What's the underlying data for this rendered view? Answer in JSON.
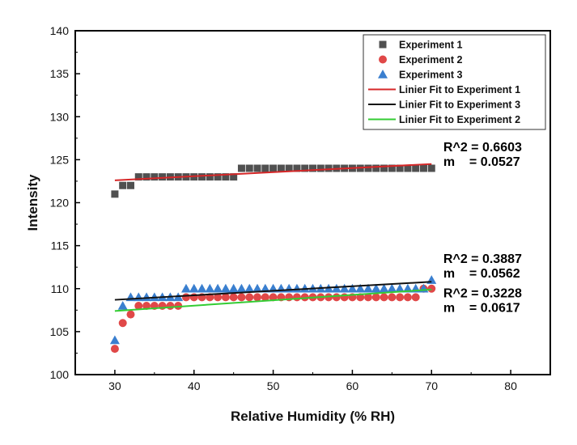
{
  "chart_data": {
    "type": "scatter",
    "xlabel": "Relative Humidity (% RH)",
    "ylabel": "Intensity",
    "xlim": [
      25,
      85
    ],
    "ylim": [
      100,
      140
    ],
    "x_ticks": [
      30,
      40,
      50,
      60,
      70,
      80
    ],
    "y_ticks": [
      100,
      105,
      110,
      115,
      120,
      125,
      130,
      135,
      140
    ],
    "grid": false,
    "legend_position": "top-right",
    "series": [
      {
        "name": "Experiment 1",
        "marker": "square",
        "color": "#505050",
        "x": [
          30,
          31,
          32,
          33,
          34,
          35,
          36,
          37,
          38,
          39,
          40,
          41,
          42,
          43,
          44,
          45,
          46,
          47,
          48,
          49,
          50,
          51,
          52,
          53,
          54,
          55,
          56,
          57,
          58,
          59,
          60,
          61,
          62,
          63,
          64,
          65,
          66,
          67,
          68,
          69,
          70
        ],
        "y": [
          121,
          122,
          122,
          123,
          123,
          123,
          123,
          123,
          123,
          123,
          123,
          123,
          123,
          123,
          123,
          123,
          124,
          124,
          124,
          124,
          124,
          124,
          124,
          124,
          124,
          124,
          124,
          124,
          124,
          124,
          124,
          124,
          124,
          124,
          124,
          124,
          124,
          124,
          124,
          124,
          124
        ]
      },
      {
        "name": "Experiment 2",
        "marker": "circle",
        "color": "#e04848",
        "x": [
          30,
          31,
          32,
          33,
          34,
          35,
          36,
          37,
          38,
          39,
          40,
          41,
          42,
          43,
          44,
          45,
          46,
          47,
          48,
          49,
          50,
          51,
          52,
          53,
          54,
          55,
          56,
          57,
          58,
          59,
          60,
          61,
          62,
          63,
          64,
          65,
          66,
          67,
          68,
          69,
          70
        ],
        "y": [
          103,
          106,
          107,
          108,
          108,
          108,
          108,
          108,
          108,
          109,
          109,
          109,
          109,
          109,
          109,
          109,
          109,
          109,
          109,
          109,
          109,
          109,
          109,
          109,
          109,
          109,
          109,
          109,
          109,
          109,
          109,
          109,
          109,
          109,
          109,
          109,
          109,
          109,
          109,
          110,
          110
        ]
      },
      {
        "name": "Experiment 3",
        "marker": "triangle",
        "color": "#3a7fcf",
        "x": [
          30,
          31,
          32,
          33,
          34,
          35,
          36,
          37,
          38,
          39,
          40,
          41,
          42,
          43,
          44,
          45,
          46,
          47,
          48,
          49,
          50,
          51,
          52,
          53,
          54,
          55,
          56,
          57,
          58,
          59,
          60,
          61,
          62,
          63,
          64,
          65,
          66,
          67,
          68,
          69,
          70
        ],
        "y": [
          104,
          108,
          109,
          109,
          109,
          109,
          109,
          109,
          109,
          110,
          110,
          110,
          110,
          110,
          110,
          110,
          110,
          110,
          110,
          110,
          110,
          110,
          110,
          110,
          110,
          110,
          110,
          110,
          110,
          110,
          110,
          110,
          110,
          110,
          110,
          110,
          110,
          110,
          110,
          110,
          111
        ]
      }
    ],
    "fits": [
      {
        "name": "Linier Fit to Experiment 1",
        "color": "#d62728",
        "x": [
          30,
          70
        ],
        "y": [
          122.6,
          124.5
        ]
      },
      {
        "name": "Linier Fit to Experiment 3",
        "color": "#111111",
        "x": [
          30,
          70
        ],
        "y": [
          108.7,
          110.8
        ]
      },
      {
        "name": "Linier Fit to Experiment 2",
        "color": "#33cc33",
        "x": [
          30,
          70
        ],
        "y": [
          107.4,
          109.9
        ]
      }
    ],
    "legend": [
      {
        "label": "Experiment 1",
        "kind": "square",
        "color": "#505050"
      },
      {
        "label": "Experiment 2",
        "kind": "circle",
        "color": "#e04848"
      },
      {
        "label": "Experiment 3",
        "kind": "triangle",
        "color": "#3a7fcf"
      },
      {
        "label": "Linier Fit to Experiment 1",
        "kind": "line",
        "color": "#d62728"
      },
      {
        "label": "Linier Fit to Experiment 3",
        "kind": "line",
        "color": "#111111"
      },
      {
        "label": "Linier Fit to Experiment 2",
        "kind": "line",
        "color": "#33cc33"
      }
    ],
    "annotations": [
      {
        "lines": [
          "R^2 = 0.6603",
          "m    = 0.0527"
        ],
        "anchor_x": 71.5,
        "anchor_y": 126.0
      },
      {
        "lines": [
          "R^2 = 0.3887",
          "m    = 0.0562"
        ],
        "anchor_x": 71.5,
        "anchor_y": 113.0
      },
      {
        "lines": [
          "R^2 = 0.3228",
          "m    = 0.0617"
        ],
        "anchor_x": 71.5,
        "anchor_y": 109.0
      }
    ]
  }
}
